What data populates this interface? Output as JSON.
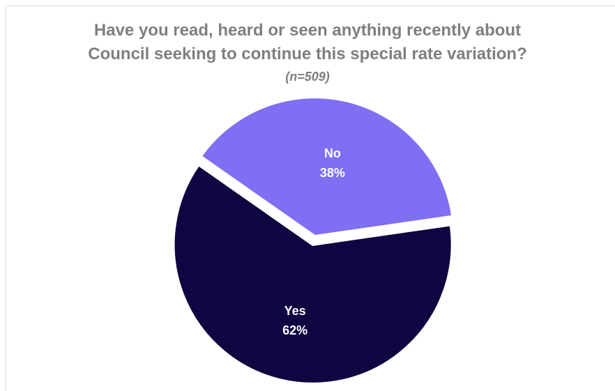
{
  "chart_data": {
    "type": "pie",
    "title_lines": [
      "Have you read, heard or seen anything recently about",
      "Council seeking to continue this special rate variation?"
    ],
    "subtitle": "(n=509)",
    "categories": [
      "No",
      "Yes"
    ],
    "values": [
      38,
      62
    ],
    "value_labels": [
      "38%",
      "62%"
    ],
    "colors": [
      "#7f6ff2",
      "#0f0540"
    ],
    "legend": "none",
    "start_angle_deg": -55
  }
}
